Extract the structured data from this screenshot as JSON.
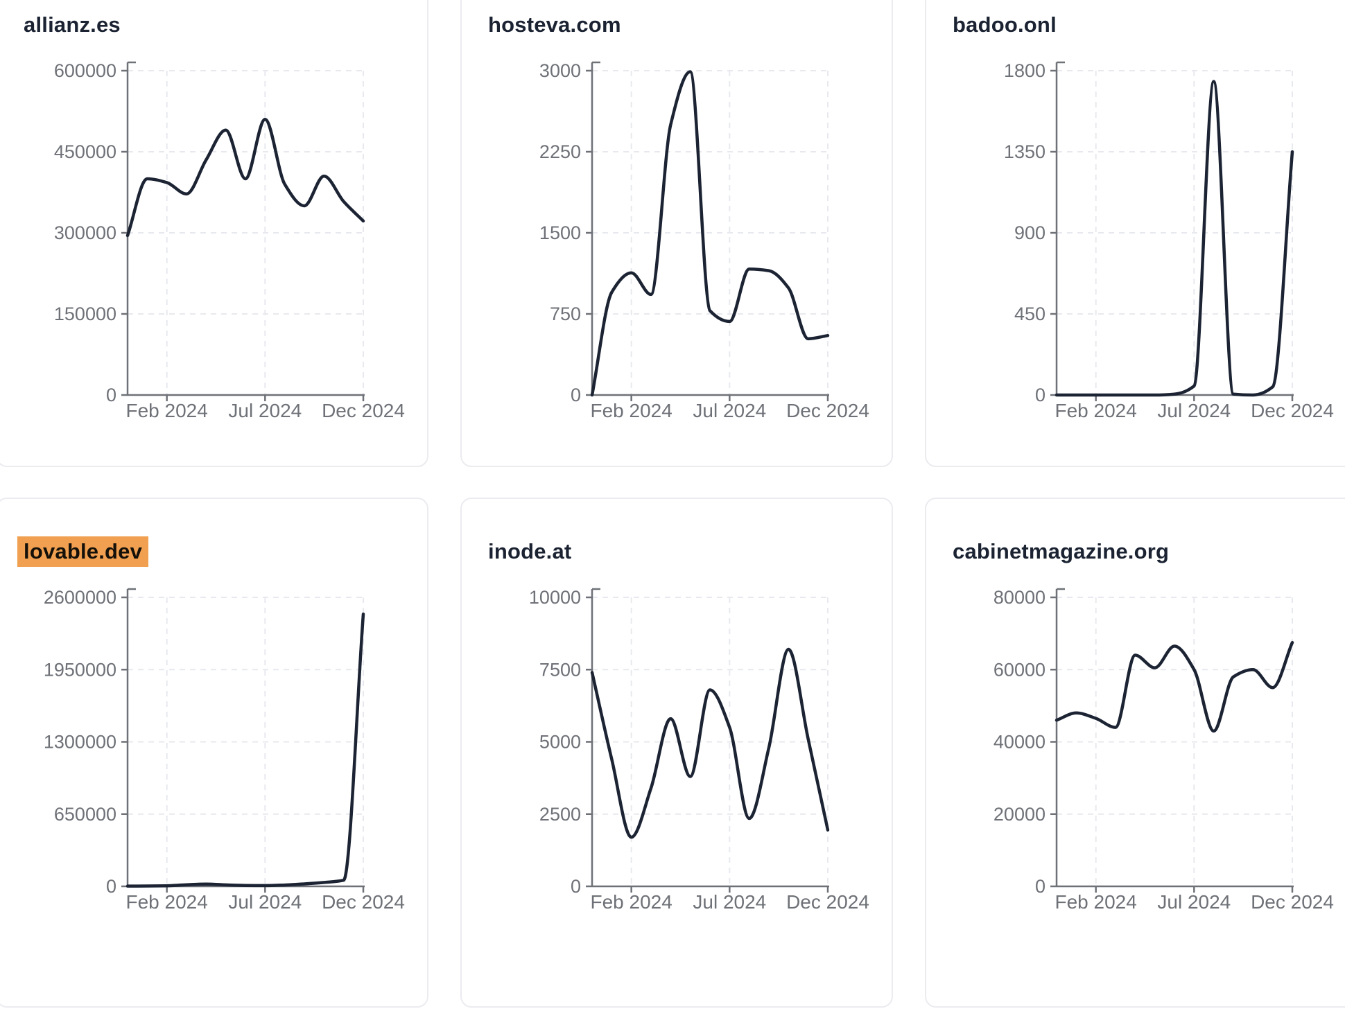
{
  "page": {
    "background_color": "#ffffff"
  },
  "style": {
    "line_color": "#1c2434",
    "title_color": "#1b2333",
    "axis_color": "#6e7177",
    "tick_label_color": "#6e7177",
    "grid_color": "#e8e9ee",
    "card_border_color": "#ebebf0",
    "highlight_color": "#F0A050"
  },
  "x_axis_tick_labels": [
    "Feb 2024",
    "Jul 2024",
    "Dec 2024"
  ],
  "chart_data": [
    {
      "type": "line",
      "title": "allianz.es",
      "highlighted": false,
      "x": [
        "Dec 2023",
        "Jan 2024",
        "Feb 2024",
        "Mar 2024",
        "Apr 2024",
        "May 2024",
        "Jun 2024",
        "Jul 2024",
        "Aug 2024",
        "Sep 2024",
        "Oct 2024",
        "Nov 2024",
        "Dec 2024"
      ],
      "values": [
        295000,
        400000,
        393000,
        372000,
        435000,
        490000,
        400000,
        510000,
        390000,
        350000,
        405000,
        358000,
        322000
      ],
      "y_ticks": [
        0,
        150000,
        300000,
        450000,
        600000
      ],
      "ylim": [
        0,
        600000
      ],
      "x_tick_indices": [
        2,
        7,
        12
      ],
      "x_tick_labels": [
        "Feb 2024",
        "Jul 2024",
        "Dec 2024"
      ],
      "grid": true,
      "legend": "none"
    },
    {
      "type": "line",
      "title": "hosteva.com",
      "highlighted": false,
      "x": [
        "Dec 2023",
        "Jan 2024",
        "Feb 2024",
        "Mar 2024",
        "Apr 2024",
        "May 2024",
        "Jun 2024",
        "Jul 2024",
        "Aug 2024",
        "Sep 2024",
        "Oct 2024",
        "Nov 2024",
        "Dec 2024"
      ],
      "values": [
        0,
        950,
        1130,
        930,
        2500,
        2990,
        780,
        680,
        1165,
        1150,
        990,
        520,
        550
      ],
      "y_ticks": [
        0,
        750,
        1500,
        2250,
        3000
      ],
      "ylim": [
        0,
        3000
      ],
      "x_tick_indices": [
        2,
        7,
        12
      ],
      "x_tick_labels": [
        "Feb 2024",
        "Jul 2024",
        "Dec 2024"
      ],
      "grid": true,
      "legend": "none"
    },
    {
      "type": "line",
      "title": "badoo.onl",
      "highlighted": false,
      "x": [
        "Dec 2023",
        "Jan 2024",
        "Feb 2024",
        "Mar 2024",
        "Apr 2024",
        "May 2024",
        "Jun 2024",
        "Jul 2024",
        "Aug 2024",
        "Sep 2024",
        "Oct 2024",
        "Nov 2024",
        "Dec 2024"
      ],
      "values": [
        0,
        0,
        0,
        0,
        0,
        0,
        5,
        50,
        1740,
        5,
        0,
        45,
        1350
      ],
      "y_ticks": [
        0,
        450,
        900,
        1350,
        1800
      ],
      "ylim": [
        0,
        1800
      ],
      "x_tick_indices": [
        2,
        7,
        12
      ],
      "x_tick_labels": [
        "Feb 2024",
        "Jul 2024",
        "Dec 2024"
      ],
      "grid": true,
      "legend": "none"
    },
    {
      "type": "line",
      "title": "lovable.dev",
      "highlighted": true,
      "x": [
        "Dec 2023",
        "Jan 2024",
        "Feb 2024",
        "Mar 2024",
        "Apr 2024",
        "May 2024",
        "Jun 2024",
        "Jul 2024",
        "Aug 2024",
        "Sep 2024",
        "Oct 2024",
        "Nov 2024",
        "Dec 2024"
      ],
      "values": [
        2000,
        3000,
        5000,
        14000,
        20000,
        13000,
        8000,
        7000,
        12000,
        22000,
        35000,
        55000,
        2450000
      ],
      "y_ticks": [
        0,
        650000,
        1300000,
        1950000,
        2600000
      ],
      "ylim": [
        0,
        2600000
      ],
      "x_tick_indices": [
        2,
        7,
        12
      ],
      "x_tick_labels": [
        "Feb 2024",
        "Jul 2024",
        "Dec 2024"
      ],
      "grid": true,
      "legend": "none"
    },
    {
      "type": "line",
      "title": "inode.at",
      "highlighted": false,
      "x": [
        "Dec 2023",
        "Jan 2024",
        "Feb 2024",
        "Mar 2024",
        "Apr 2024",
        "May 2024",
        "Jun 2024",
        "Jul 2024",
        "Aug 2024",
        "Sep 2024",
        "Oct 2024",
        "Nov 2024",
        "Dec 2024"
      ],
      "values": [
        7400,
        4400,
        1700,
        3400,
        5800,
        3800,
        6800,
        5500,
        2350,
        4800,
        8200,
        5100,
        1950
      ],
      "y_ticks": [
        0,
        2500,
        5000,
        7500,
        10000
      ],
      "ylim": [
        0,
        10000
      ],
      "x_tick_indices": [
        2,
        7,
        12
      ],
      "x_tick_labels": [
        "Feb 2024",
        "Jul 2024",
        "Dec 2024"
      ],
      "grid": true,
      "legend": "none"
    },
    {
      "type": "line",
      "title": "cabinetmagazine.org",
      "highlighted": false,
      "x": [
        "Dec 2023",
        "Jan 2024",
        "Feb 2024",
        "Mar 2024",
        "Apr 2024",
        "May 2024",
        "Jun 2024",
        "Jul 2024",
        "Aug 2024",
        "Sep 2024",
        "Oct 2024",
        "Nov 2024",
        "Dec 2024"
      ],
      "values": [
        46000,
        48000,
        46500,
        44000,
        64000,
        60500,
        66500,
        60000,
        43000,
        58000,
        60000,
        55000,
        67500
      ],
      "y_ticks": [
        0,
        20000,
        40000,
        60000,
        80000
      ],
      "ylim": [
        0,
        80000
      ],
      "x_tick_indices": [
        2,
        7,
        12
      ],
      "x_tick_labels": [
        "Feb 2024",
        "Jul 2024",
        "Dec 2024"
      ],
      "grid": true,
      "legend": "none"
    }
  ]
}
